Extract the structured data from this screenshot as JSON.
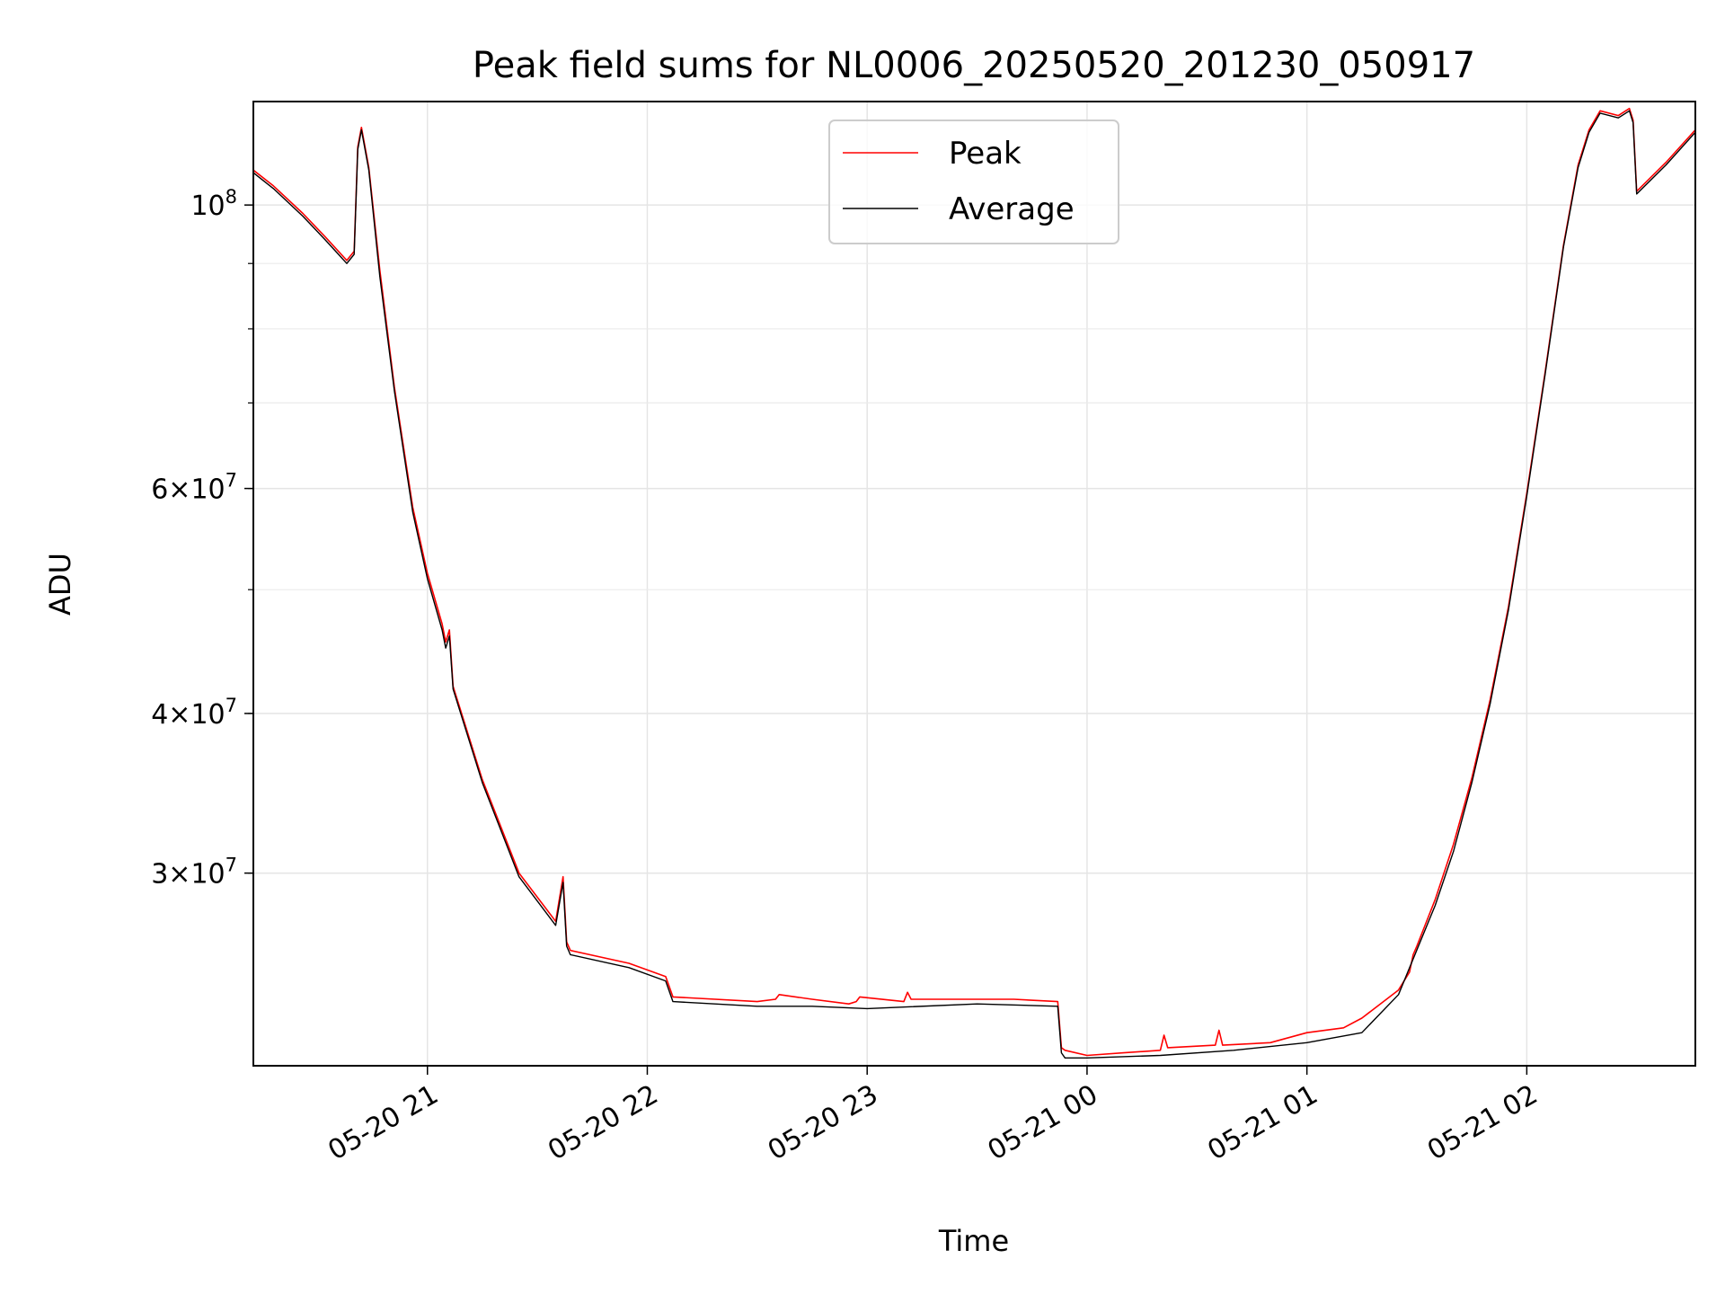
{
  "chart_data": {
    "type": "line",
    "title": "Peak field sums for NL0006_20250520_201230_050917",
    "xlabel": "Time",
    "ylabel": "ADU",
    "yscale": "log",
    "ylim": [
      21200000,
      120500000
    ],
    "xlim": [
      "2025-05-20 20:12:30",
      "2025-05-21 02:46:00"
    ],
    "grid": true,
    "legend_position": "upper-center",
    "x_ticks": [
      {
        "at": "2025-05-20 21:00",
        "label": "05-20 21"
      },
      {
        "at": "2025-05-20 22:00",
        "label": "05-20 22"
      },
      {
        "at": "2025-05-20 23:00",
        "label": "05-20 23"
      },
      {
        "at": "2025-05-21 00:00",
        "label": "05-21 00"
      },
      {
        "at": "2025-05-21 01:00",
        "label": "05-21 01"
      },
      {
        "at": "2025-05-21 02:00",
        "label": "05-21 02"
      }
    ],
    "y_ticks": [
      {
        "value": 100000000,
        "mantissa": "",
        "base": "10",
        "exp": "8"
      },
      {
        "value": 60000000,
        "mantissa": "6×",
        "base": "10",
        "exp": "7"
      },
      {
        "value": 40000000,
        "mantissa": "4×",
        "base": "10",
        "exp": "7"
      },
      {
        "value": 30000000,
        "mantissa": "3×",
        "base": "10",
        "exp": "7"
      }
    ],
    "series": [
      {
        "name": "Peak",
        "color": "#ff0000",
        "x": [
          "2025-05-20 20:12:30",
          "2025-05-20 20:18",
          "2025-05-20 20:26",
          "2025-05-20 20:32",
          "2025-05-20 20:38",
          "2025-05-20 20:40",
          "2025-05-20 20:41",
          "2025-05-20 20:42",
          "2025-05-20 20:44",
          "2025-05-20 20:47",
          "2025-05-20 20:51",
          "2025-05-20 20:56",
          "2025-05-20 21:00",
          "2025-05-20 21:04",
          "2025-05-20 21:05",
          "2025-05-20 21:06",
          "2025-05-20 21:07",
          "2025-05-20 21:15",
          "2025-05-20 21:25",
          "2025-05-20 21:35",
          "2025-05-20 21:37",
          "2025-05-20 21:38",
          "2025-05-20 21:39",
          "2025-05-20 21:55",
          "2025-05-20 22:05",
          "2025-05-20 22:07",
          "2025-05-20 22:30",
          "2025-05-20 22:35",
          "2025-05-20 22:36",
          "2025-05-20 22:45",
          "2025-05-20 22:55",
          "2025-05-20 22:57",
          "2025-05-20 22:58",
          "2025-05-20 23:10",
          "2025-05-20 23:11",
          "2025-05-20 23:12",
          "2025-05-20 23:30",
          "2025-05-20 23:40",
          "2025-05-20 23:52",
          "2025-05-20 23:53",
          "2025-05-20 23:54",
          "2025-05-21 00:00",
          "2025-05-21 00:10",
          "2025-05-21 00:20",
          "2025-05-21 00:21",
          "2025-05-21 00:22",
          "2025-05-21 00:35",
          "2025-05-21 00:36",
          "2025-05-21 00:37",
          "2025-05-21 00:50",
          "2025-05-21 01:00",
          "2025-05-21 01:10",
          "2025-05-21 01:15",
          "2025-05-21 01:25",
          "2025-05-21 01:28",
          "2025-05-21 01:29",
          "2025-05-21 01:30",
          "2025-05-21 01:35",
          "2025-05-21 01:40",
          "2025-05-21 01:45",
          "2025-05-21 01:50",
          "2025-05-21 01:55",
          "2025-05-21 02:00",
          "2025-05-21 02:05",
          "2025-05-21 02:10",
          "2025-05-21 02:14",
          "2025-05-21 02:17",
          "2025-05-21 02:20",
          "2025-05-21 02:25",
          "2025-05-21 02:28",
          "2025-05-21 02:29",
          "2025-05-21 02:30",
          "2025-05-21 02:38",
          "2025-05-21 02:46"
        ],
        "y": [
          106500000,
          103500000,
          98500000,
          94500000,
          90500000,
          92000000,
          111000000,
          115000000,
          107000000,
          89000000,
          72000000,
          58000000,
          51500000,
          47000000,
          45500000,
          46500000,
          42000000,
          35500000,
          30000000,
          27500000,
          29800000,
          26500000,
          26100000,
          25500000,
          24900000,
          24000000,
          23800000,
          23900000,
          24100000,
          23900000,
          23700000,
          23800000,
          24000000,
          23800000,
          24200000,
          23900000,
          23900000,
          23900000,
          23800000,
          21900000,
          21800000,
          21600000,
          21700000,
          21800000,
          22400000,
          21900000,
          22000000,
          22600000,
          22000000,
          22100000,
          22500000,
          22700000,
          23100000,
          24300000,
          25100000,
          25900000,
          26300000,
          28600000,
          31600000,
          35600000,
          41000000,
          48500000,
          59500000,
          74000000,
          93000000,
          107500000,
          114500000,
          118500000,
          117500000,
          119000000,
          116500000,
          102500000,
          108000000,
          114500000
        ]
      },
      {
        "name": "Average",
        "color": "#000000",
        "x": [
          "2025-05-20 20:12:30",
          "2025-05-20 20:18",
          "2025-05-20 20:26",
          "2025-05-20 20:32",
          "2025-05-20 20:38",
          "2025-05-20 20:40",
          "2025-05-20 20:41",
          "2025-05-20 20:42",
          "2025-05-20 20:44",
          "2025-05-20 20:47",
          "2025-05-20 20:51",
          "2025-05-20 20:56",
          "2025-05-20 21:00",
          "2025-05-20 21:04",
          "2025-05-20 21:05",
          "2025-05-20 21:06",
          "2025-05-20 21:07",
          "2025-05-20 21:15",
          "2025-05-20 21:25",
          "2025-05-20 21:35",
          "2025-05-20 21:37",
          "2025-05-20 21:38",
          "2025-05-20 21:39",
          "2025-05-20 21:55",
          "2025-05-20 22:05",
          "2025-05-20 22:07",
          "2025-05-20 22:30",
          "2025-05-20 22:45",
          "2025-05-20 23:00",
          "2025-05-20 23:30",
          "2025-05-20 23:52",
          "2025-05-20 23:53",
          "2025-05-20 23:54",
          "2025-05-21 00:00",
          "2025-05-21 00:20",
          "2025-05-21 00:40",
          "2025-05-21 01:00",
          "2025-05-21 01:15",
          "2025-05-21 01:25",
          "2025-05-21 01:35",
          "2025-05-21 01:40",
          "2025-05-21 01:45",
          "2025-05-21 01:50",
          "2025-05-21 01:55",
          "2025-05-21 02:00",
          "2025-05-21 02:05",
          "2025-05-21 02:10",
          "2025-05-21 02:14",
          "2025-05-21 02:17",
          "2025-05-21 02:20",
          "2025-05-21 02:25",
          "2025-05-21 02:28",
          "2025-05-21 02:29",
          "2025-05-21 02:30",
          "2025-05-21 02:38",
          "2025-05-21 02:46"
        ],
        "y": [
          106000000,
          103000000,
          98000000,
          94000000,
          90000000,
          91500000,
          110500000,
          114500000,
          106500000,
          88000000,
          71500000,
          57500000,
          51000000,
          46500000,
          45000000,
          46000000,
          41800000,
          35300000,
          29800000,
          27300000,
          29500000,
          26300000,
          25900000,
          25300000,
          24700000,
          23800000,
          23600000,
          23600000,
          23500000,
          23700000,
          23600000,
          21700000,
          21500000,
          21500000,
          21600000,
          21800000,
          22100000,
          22500000,
          24100000,
          28300000,
          31200000,
          35300000,
          40700000,
          48200000,
          59200000,
          73700000,
          92700000,
          107000000,
          114000000,
          118000000,
          117000000,
          118500000,
          116000000,
          102000000,
          107500000,
          114000000
        ]
      }
    ]
  }
}
